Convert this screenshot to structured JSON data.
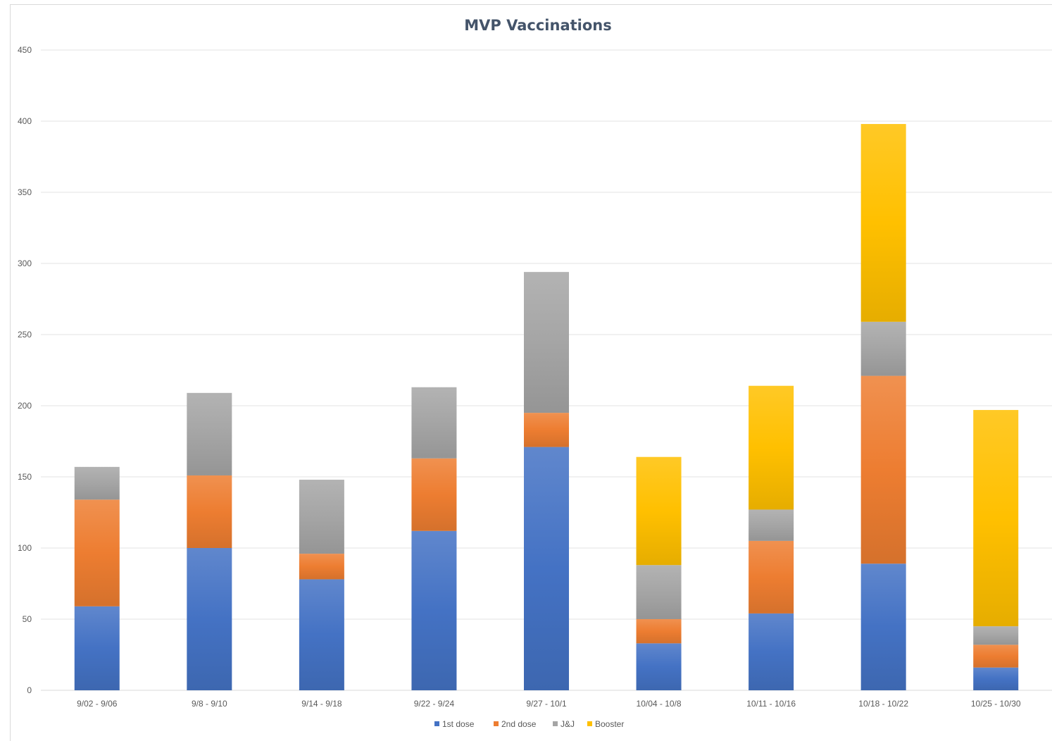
{
  "chart_data": {
    "type": "bar",
    "stacked": true,
    "title": "MVP Vaccinations",
    "xlabel": "",
    "ylabel": "",
    "ylim": [
      0,
      450
    ],
    "yticks": [
      0,
      50,
      100,
      150,
      200,
      250,
      300,
      350,
      400,
      450
    ],
    "grid": true,
    "legend_position": "bottom",
    "categories": [
      "9/02 - 9/06",
      "9/8 - 9/10",
      "9/14 - 9/18",
      "9/22 - 9/24",
      "9/27 - 10/1",
      "10/04 - 10/8",
      "10/11 - 10/16",
      "10/18 - 10/22",
      "10/25 - 10/30"
    ],
    "series": [
      {
        "name": "1st dose",
        "color": "#4472c4",
        "values": [
          59,
          100,
          78,
          112,
          171,
          33,
          54,
          89,
          16
        ]
      },
      {
        "name": "2nd dose",
        "color": "#ed7d31",
        "values": [
          75,
          51,
          18,
          51,
          24,
          17,
          51,
          132,
          16
        ]
      },
      {
        "name": "J&J",
        "color": "#a5a5a5",
        "values": [
          23,
          58,
          52,
          50,
          99,
          38,
          22,
          38,
          13
        ]
      },
      {
        "name": "Booster",
        "color": "#ffc000",
        "values": [
          0,
          0,
          0,
          0,
          0,
          76,
          87,
          139,
          152
        ]
      }
    ]
  }
}
